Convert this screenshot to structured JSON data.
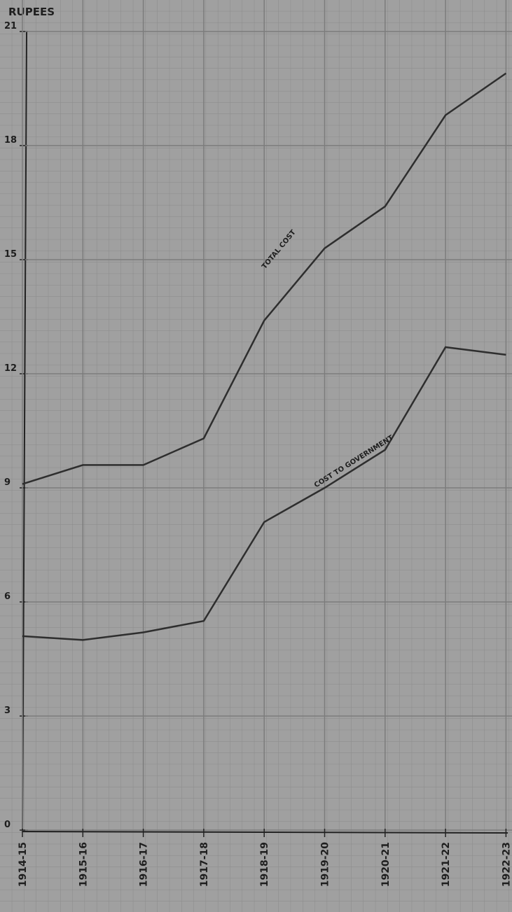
{
  "chart_data": {
    "type": "line",
    "y_axis_label": "RUPEES",
    "categories": [
      "1914-15",
      "1915-16",
      "1916-17",
      "1917-18",
      "1918-19",
      "1919-20",
      "1920-21",
      "1921-22",
      "1922-23"
    ],
    "series": [
      {
        "name": "TOTAL COST",
        "color": "#2e2e2e",
        "values": [
          9.1,
          9.6,
          9.6,
          10.3,
          13.4,
          15.3,
          16.4,
          18.8,
          19.9
        ]
      },
      {
        "name": "COST TO GOVERNMENT",
        "color": "#2e2e2e",
        "values": [
          5.1,
          5.0,
          5.2,
          5.5,
          8.1,
          9.0,
          10.0,
          12.7,
          12.5
        ]
      }
    ],
    "ylim": [
      0,
      21
    ],
    "yticks": [
      0,
      3,
      6,
      9,
      12,
      15,
      18,
      21
    ],
    "grid": true
  }
}
